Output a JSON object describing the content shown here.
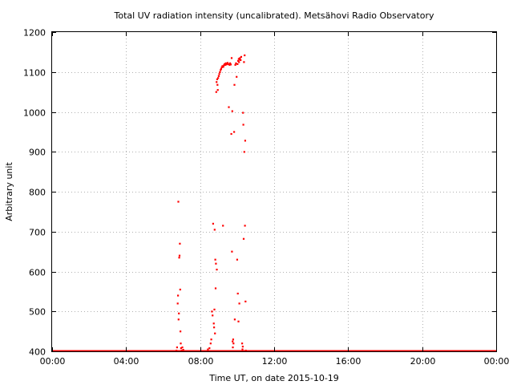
{
  "chart_data": {
    "type": "scatter",
    "title": "Total UV radiation intensity (uncalibrated). Metsähovi Radio Observatory",
    "xlabel": "Time UT, on date 2015-10-19",
    "ylabel": "Arbitrary unit",
    "xlim": [
      "00:00",
      "24:00"
    ],
    "ylim": [
      400,
      1200
    ],
    "x_ticks": [
      "00:00",
      "04:00",
      "08:00",
      "12:00",
      "16:00",
      "20:00",
      "00:00"
    ],
    "y_ticks": [
      400,
      500,
      600,
      700,
      800,
      900,
      1000,
      1100,
      1200
    ],
    "grid": true,
    "series_color": "#ff0000",
    "baseline": {
      "value": 400,
      "from": "00:00",
      "to": "24:00"
    },
    "points": [
      [
        "06:43",
        402
      ],
      [
        "06:45",
        410
      ],
      [
        "06:47",
        520
      ],
      [
        "06:48",
        540
      ],
      [
        "06:49",
        775
      ],
      [
        "06:50",
        480
      ],
      [
        "06:51",
        495
      ],
      [
        "06:52",
        635
      ],
      [
        "06:53",
        640
      ],
      [
        "06:54",
        670
      ],
      [
        "06:55",
        555
      ],
      [
        "06:56",
        450
      ],
      [
        "06:57",
        420
      ],
      [
        "06:58",
        408
      ],
      [
        "07:00",
        402
      ],
      [
        "07:02",
        410
      ],
      [
        "07:05",
        404
      ],
      [
        "08:25",
        405
      ],
      [
        "08:30",
        408
      ],
      [
        "08:34",
        420
      ],
      [
        "08:36",
        430
      ],
      [
        "08:38",
        500
      ],
      [
        "08:40",
        490
      ],
      [
        "08:42",
        720
      ],
      [
        "08:44",
        470
      ],
      [
        "08:45",
        460
      ],
      [
        "08:46",
        505
      ],
      [
        "08:47",
        705
      ],
      [
        "08:48",
        445
      ],
      [
        "08:49",
        630
      ],
      [
        "08:50",
        558
      ],
      [
        "08:51",
        620
      ],
      [
        "08:52",
        1050
      ],
      [
        "08:53",
        1075
      ],
      [
        "08:54",
        605
      ],
      [
        "08:55",
        1082
      ],
      [
        "08:56",
        1068
      ],
      [
        "08:57",
        1055
      ],
      [
        "08:58",
        1085
      ],
      [
        "09:00",
        1090
      ],
      [
        "09:02",
        1095
      ],
      [
        "09:04",
        1100
      ],
      [
        "09:06",
        1105
      ],
      [
        "09:08",
        1108
      ],
      [
        "09:10",
        1112
      ],
      [
        "09:12",
        1115
      ],
      [
        "09:14",
        715
      ],
      [
        "09:15",
        1113
      ],
      [
        "09:17",
        1117
      ],
      [
        "09:19",
        1120
      ],
      [
        "09:21",
        1118
      ],
      [
        "09:23",
        1122
      ],
      [
        "09:25",
        1119
      ],
      [
        "09:27",
        1121
      ],
      [
        "09:29",
        1123
      ],
      [
        "09:31",
        1120
      ],
      [
        "09:33",
        1012
      ],
      [
        "09:35",
        1118
      ],
      [
        "09:37",
        1122
      ],
      [
        "09:39",
        1119
      ],
      [
        "09:41",
        945
      ],
      [
        "09:42",
        1135
      ],
      [
        "09:43",
        650
      ],
      [
        "09:44",
        1002
      ],
      [
        "09:45",
        425
      ],
      [
        "09:46",
        410
      ],
      [
        "09:47",
        430
      ],
      [
        "09:48",
        420
      ],
      [
        "09:50",
        950
      ],
      [
        "09:51",
        1068
      ],
      [
        "09:52",
        480
      ],
      [
        "09:54",
        1118
      ],
      [
        "09:56",
        1122
      ],
      [
        "09:58",
        1088
      ],
      [
        "10:00",
        630
      ],
      [
        "10:01",
        1120
      ],
      [
        "10:02",
        545
      ],
      [
        "10:03",
        1128
      ],
      [
        "10:04",
        475
      ],
      [
        "10:05",
        1133
      ],
      [
        "10:06",
        1125
      ],
      [
        "10:07",
        520
      ],
      [
        "10:08",
        1131
      ],
      [
        "10:09",
        1135
      ],
      [
        "10:11",
        1130
      ],
      [
        "10:13",
        1138
      ],
      [
        "10:16",
        420
      ],
      [
        "10:17",
        405
      ],
      [
        "10:18",
        412
      ],
      [
        "10:19",
        998
      ],
      [
        "10:20",
        968
      ],
      [
        "10:21",
        682
      ],
      [
        "10:22",
        1125
      ],
      [
        "10:23",
        900
      ],
      [
        "10:24",
        1142
      ],
      [
        "10:25",
        715
      ],
      [
        "10:26",
        928
      ],
      [
        "10:27",
        525
      ],
      [
        "10:28",
        402
      ]
    ]
  }
}
